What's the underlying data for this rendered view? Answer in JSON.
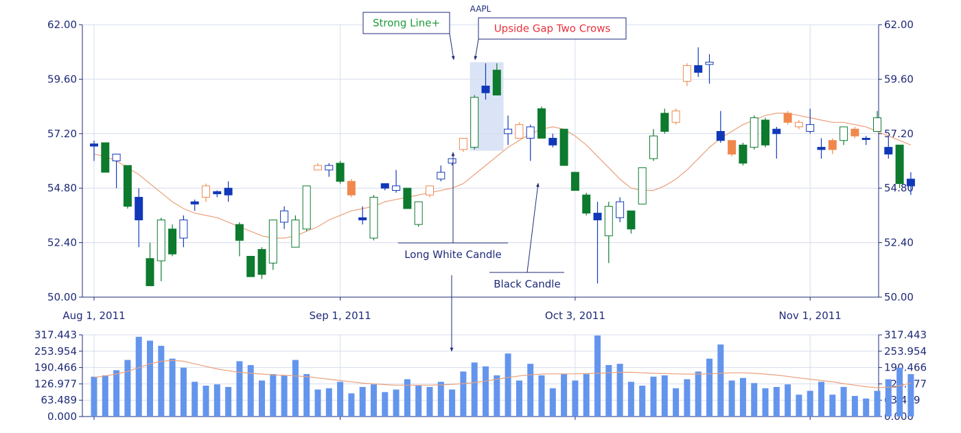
{
  "chart_data": {
    "type": "candlestick",
    "title": "AAPL",
    "price_axis": {
      "ylim": [
        50,
        62
      ],
      "ticks": [
        "50.00",
        "52.40",
        "54.80",
        "57.20",
        "59.60",
        "62.00"
      ]
    },
    "volume_axis": {
      "ylim": [
        0,
        317.443
      ],
      "ticks": [
        "0.000",
        "63.489",
        "126.977",
        "190.466",
        "253.954",
        "317.443"
      ]
    },
    "x_labels": [
      {
        "label": "Aug 1, 2011",
        "index": 0
      },
      {
        "label": "Sep 1, 2011",
        "index": 22
      },
      {
        "label": "Oct 3, 2011",
        "index": 43
      },
      {
        "label": "Nov 1, 2011",
        "index": 64
      }
    ],
    "grid": true,
    "colors": {
      "up_green": "#0d7a2e",
      "down_green": "#0d7a2e",
      "blue": "#1038b8",
      "orange": "#f0884e",
      "moving_average": "#eba07a",
      "volume_bar": "#6495ed",
      "axis": "#1e2a78",
      "highlight": "#dbe4f6"
    },
    "candles": [
      {
        "o": 56.75,
        "h": 56.9,
        "l": 56.0,
        "c": 56.65,
        "style": "blue-solid"
      },
      {
        "o": 56.8,
        "h": 56.8,
        "l": 55.5,
        "c": 55.5,
        "style": "green-solid"
      },
      {
        "o": 56.0,
        "h": 56.3,
        "l": 54.8,
        "c": 56.3,
        "style": "blue-hollow"
      },
      {
        "o": 55.8,
        "h": 55.8,
        "l": 53.9,
        "c": 54.0,
        "style": "green-solid"
      },
      {
        "o": 54.4,
        "h": 54.8,
        "l": 52.2,
        "c": 53.4,
        "style": "blue-solid"
      },
      {
        "o": 51.7,
        "h": 52.4,
        "l": 50.5,
        "c": 50.5,
        "style": "green-solid"
      },
      {
        "o": 51.6,
        "h": 53.5,
        "l": 50.7,
        "c": 53.4,
        "style": "green-hollow"
      },
      {
        "o": 53.0,
        "h": 53.2,
        "l": 51.8,
        "c": 51.9,
        "style": "green-solid"
      },
      {
        "o": 52.6,
        "h": 53.6,
        "l": 52.2,
        "c": 53.4,
        "style": "blue-hollow"
      },
      {
        "o": 54.2,
        "h": 54.3,
        "l": 53.8,
        "c": 54.1,
        "style": "blue-solid"
      },
      {
        "o": 54.4,
        "h": 55.0,
        "l": 54.2,
        "c": 54.9,
        "style": "orange-hollow"
      },
      {
        "o": 54.65,
        "h": 54.7,
        "l": 54.4,
        "c": 54.55,
        "style": "blue-solid"
      },
      {
        "o": 54.8,
        "h": 55.1,
        "l": 54.2,
        "c": 54.5,
        "style": "blue-solid"
      },
      {
        "o": 53.2,
        "h": 53.3,
        "l": 51.8,
        "c": 52.5,
        "style": "green-solid"
      },
      {
        "o": 51.8,
        "h": 51.8,
        "l": 50.9,
        "c": 50.9,
        "style": "green-solid"
      },
      {
        "o": 52.1,
        "h": 52.2,
        "l": 50.8,
        "c": 51.0,
        "style": "green-solid"
      },
      {
        "o": 51.5,
        "h": 53.4,
        "l": 51.2,
        "c": 53.4,
        "style": "green-hollow"
      },
      {
        "o": 53.3,
        "h": 54.0,
        "l": 53.0,
        "c": 53.8,
        "style": "blue-hollow"
      },
      {
        "o": 52.2,
        "h": 53.6,
        "l": 52.2,
        "c": 53.4,
        "style": "green-hollow"
      },
      {
        "o": 53.0,
        "h": 54.9,
        "l": 52.9,
        "c": 54.9,
        "style": "green-hollow"
      },
      {
        "o": 55.6,
        "h": 55.9,
        "l": 55.6,
        "c": 55.8,
        "style": "orange-hollow"
      },
      {
        "o": 55.6,
        "h": 55.9,
        "l": 55.3,
        "c": 55.8,
        "style": "blue-hollow"
      },
      {
        "o": 55.9,
        "h": 56.0,
        "l": 55.0,
        "c": 55.1,
        "style": "green-solid"
      },
      {
        "o": 55.1,
        "h": 55.2,
        "l": 54.4,
        "c": 54.5,
        "style": "orange-solid"
      },
      {
        "o": 53.5,
        "h": 54.0,
        "l": 53.2,
        "c": 53.4,
        "style": "blue-solid"
      },
      {
        "o": 52.6,
        "h": 54.5,
        "l": 52.5,
        "c": 54.4,
        "style": "green-hollow"
      },
      {
        "o": 55.0,
        "h": 55.0,
        "l": 54.7,
        "c": 54.8,
        "style": "blue-solid"
      },
      {
        "o": 54.7,
        "h": 55.6,
        "l": 54.6,
        "c": 54.9,
        "style": "blue-hollow"
      },
      {
        "o": 54.8,
        "h": 54.8,
        "l": 53.9,
        "c": 53.9,
        "style": "green-solid"
      },
      {
        "o": 53.2,
        "h": 54.2,
        "l": 53.1,
        "c": 54.2,
        "style": "green-hollow"
      },
      {
        "o": 54.5,
        "h": 54.9,
        "l": 54.4,
        "c": 54.9,
        "style": "orange-hollow"
      },
      {
        "o": 55.2,
        "h": 55.8,
        "l": 55.1,
        "c": 55.5,
        "style": "blue-hollow"
      },
      {
        "o": 55.9,
        "h": 56.1,
        "l": 55.8,
        "c": 56.1,
        "style": "blue-hollow"
      },
      {
        "o": 56.5,
        "h": 57.0,
        "l": 56.4,
        "c": 57.0,
        "style": "orange-hollow"
      },
      {
        "o": 56.6,
        "h": 58.9,
        "l": 56.5,
        "c": 58.8,
        "style": "green-hollow"
      },
      {
        "o": 59.3,
        "h": 60.3,
        "l": 58.7,
        "c": 59.0,
        "style": "blue-solid"
      },
      {
        "o": 60.0,
        "h": 60.3,
        "l": 58.9,
        "c": 58.9,
        "style": "green-solid"
      },
      {
        "o": 57.2,
        "h": 58.0,
        "l": 56.7,
        "c": 57.4,
        "style": "blue-hollow"
      },
      {
        "o": 57.0,
        "h": 57.7,
        "l": 57.0,
        "c": 57.6,
        "style": "orange-hollow"
      },
      {
        "o": 57.0,
        "h": 57.6,
        "l": 56.0,
        "c": 57.5,
        "style": "blue-hollow"
      },
      {
        "o": 58.3,
        "h": 58.4,
        "l": 57.0,
        "c": 57.0,
        "style": "green-solid"
      },
      {
        "o": 57.0,
        "h": 57.2,
        "l": 56.6,
        "c": 56.7,
        "style": "blue-solid"
      },
      {
        "o": 57.4,
        "h": 57.4,
        "l": 55.8,
        "c": 55.8,
        "style": "green-solid"
      },
      {
        "o": 55.5,
        "h": 55.5,
        "l": 54.7,
        "c": 54.7,
        "style": "green-solid"
      },
      {
        "o": 54.5,
        "h": 54.6,
        "l": 53.6,
        "c": 53.7,
        "style": "green-solid"
      },
      {
        "o": 53.7,
        "h": 54.2,
        "l": 50.6,
        "c": 53.4,
        "style": "blue-solid"
      },
      {
        "o": 52.7,
        "h": 54.2,
        "l": 51.5,
        "c": 54.0,
        "style": "green-hollow"
      },
      {
        "o": 53.5,
        "h": 54.4,
        "l": 53.3,
        "c": 54.2,
        "style": "blue-hollow"
      },
      {
        "o": 53.8,
        "h": 53.8,
        "l": 52.8,
        "c": 53.0,
        "style": "green-solid"
      },
      {
        "o": 54.1,
        "h": 55.7,
        "l": 54.1,
        "c": 55.7,
        "style": "green-hollow"
      },
      {
        "o": 56.1,
        "h": 57.4,
        "l": 56.0,
        "c": 57.1,
        "style": "green-hollow"
      },
      {
        "o": 58.1,
        "h": 58.3,
        "l": 57.2,
        "c": 57.3,
        "style": "green-solid"
      },
      {
        "o": 57.7,
        "h": 58.3,
        "l": 57.6,
        "c": 58.2,
        "style": "orange-hollow"
      },
      {
        "o": 59.5,
        "h": 60.3,
        "l": 59.3,
        "c": 60.2,
        "style": "orange-hollow"
      },
      {
        "o": 60.2,
        "h": 61.0,
        "l": 59.7,
        "c": 59.9,
        "style": "blue-solid"
      },
      {
        "o": 60.25,
        "h": 60.7,
        "l": 59.4,
        "c": 60.35,
        "style": "blue-hollow"
      },
      {
        "o": 57.3,
        "h": 58.2,
        "l": 56.8,
        "c": 56.9,
        "style": "blue-solid"
      },
      {
        "o": 56.9,
        "h": 56.9,
        "l": 56.2,
        "c": 56.3,
        "style": "orange-solid"
      },
      {
        "o": 56.7,
        "h": 56.8,
        "l": 55.8,
        "c": 55.9,
        "style": "green-solid"
      },
      {
        "o": 56.6,
        "h": 58.0,
        "l": 56.5,
        "c": 57.9,
        "style": "green-hollow"
      },
      {
        "o": 57.8,
        "h": 57.9,
        "l": 56.6,
        "c": 56.7,
        "style": "green-solid"
      },
      {
        "o": 57.4,
        "h": 57.5,
        "l": 56.1,
        "c": 57.2,
        "style": "blue-solid"
      },
      {
        "o": 58.1,
        "h": 58.2,
        "l": 57.6,
        "c": 57.7,
        "style": "orange-solid"
      },
      {
        "o": 57.7,
        "h": 57.8,
        "l": 57.4,
        "c": 57.5,
        "style": "orange-hollow"
      },
      {
        "o": 57.3,
        "h": 58.3,
        "l": 57.2,
        "c": 57.6,
        "style": "blue-hollow"
      },
      {
        "o": 56.6,
        "h": 57.0,
        "l": 56.1,
        "c": 56.5,
        "style": "blue-solid"
      },
      {
        "o": 56.5,
        "h": 57.0,
        "l": 56.3,
        "c": 56.9,
        "style": "orange-solid"
      },
      {
        "o": 56.9,
        "h": 57.5,
        "l": 56.7,
        "c": 57.5,
        "style": "green-hollow"
      },
      {
        "o": 57.4,
        "h": 57.5,
        "l": 57.0,
        "c": 57.1,
        "style": "orange-solid"
      },
      {
        "o": 57.0,
        "h": 57.1,
        "l": 56.7,
        "c": 56.95,
        "style": "blue-solid"
      },
      {
        "o": 57.3,
        "h": 58.2,
        "l": 57.3,
        "c": 57.9,
        "style": "green-hollow"
      },
      {
        "o": 56.6,
        "h": 57.1,
        "l": 56.1,
        "c": 56.3,
        "style": "blue-solid"
      },
      {
        "o": 56.7,
        "h": 56.7,
        "l": 54.8,
        "c": 55.0,
        "style": "green-solid"
      },
      {
        "o": 55.2,
        "h": 55.5,
        "l": 54.5,
        "c": 54.9,
        "style": "blue-solid"
      }
    ],
    "moving_average": [
      56.3,
      56.2,
      56.0,
      55.7,
      55.4,
      55.0,
      54.6,
      54.2,
      53.9,
      53.7,
      53.6,
      53.5,
      53.3,
      53.1,
      52.9,
      52.7,
      52.6,
      52.6,
      52.7,
      52.9,
      53.1,
      53.4,
      53.6,
      53.8,
      53.9,
      54.0,
      54.2,
      54.3,
      54.4,
      54.5,
      54.6,
      54.7,
      54.8,
      55.0,
      55.4,
      55.8,
      56.2,
      56.6,
      56.9,
      57.2,
      57.4,
      57.5,
      57.4,
      57.1,
      56.7,
      56.2,
      55.7,
      55.2,
      54.8,
      54.7,
      54.7,
      54.9,
      55.2,
      55.6,
      56.1,
      56.6,
      57.0,
      57.3,
      57.6,
      57.8,
      58.0,
      58.1,
      58.1,
      58.0,
      57.9,
      57.8,
      57.7,
      57.7,
      57.6,
      57.5,
      57.3,
      57.1,
      56.9,
      56.7
    ],
    "volume": [
      155,
      160,
      180,
      220,
      310,
      295,
      275,
      225,
      190,
      135,
      120,
      125,
      115,
      215,
      200,
      140,
      165,
      160,
      220,
      165,
      105,
      110,
      135,
      90,
      115,
      125,
      95,
      105,
      145,
      120,
      115,
      135,
      105,
      175,
      210,
      195,
      160,
      245,
      140,
      205,
      160,
      110,
      165,
      140,
      165,
      315,
      200,
      205,
      135,
      120,
      155,
      160,
      110,
      145,
      175,
      225,
      280,
      140,
      150,
      130,
      110,
      115,
      125,
      85,
      100,
      135,
      85,
      115,
      80,
      70,
      100,
      145,
      190,
      165
    ],
    "volume_moving_average": [
      152,
      158,
      165,
      175,
      190,
      205,
      215,
      218,
      215,
      205,
      195,
      185,
      178,
      172,
      168,
      165,
      162,
      160,
      158,
      155,
      150,
      145,
      140,
      135,
      130,
      127,
      124,
      122,
      122,
      122,
      122,
      123,
      125,
      128,
      132,
      138,
      145,
      152,
      158,
      162,
      165,
      166,
      166,
      166,
      167,
      168,
      170,
      172,
      172,
      170,
      168,
      167,
      166,
      165,
      165,
      166,
      168,
      170,
      170,
      168,
      165,
      161,
      156,
      150,
      145,
      140,
      135,
      128,
      122,
      116,
      112,
      114,
      120,
      130
    ],
    "highlight_range": {
      "from_index": 33.6,
      "to_index": 36.6,
      "y_from": 56.45,
      "y_to": 60.35
    },
    "annotations": [
      {
        "id": "strong-line",
        "text": "Strong Line+",
        "color": "#1e9a3a",
        "box": true
      },
      {
        "id": "upside-gap",
        "text": "Upside Gap Two Crows",
        "color": "#e8323c",
        "box": true
      },
      {
        "id": "long-white",
        "text": "Long White Candle",
        "color": "#1e2a78",
        "box": false
      },
      {
        "id": "black-candle",
        "text": "Black Candle",
        "color": "#1e2a78",
        "box": false
      }
    ]
  }
}
